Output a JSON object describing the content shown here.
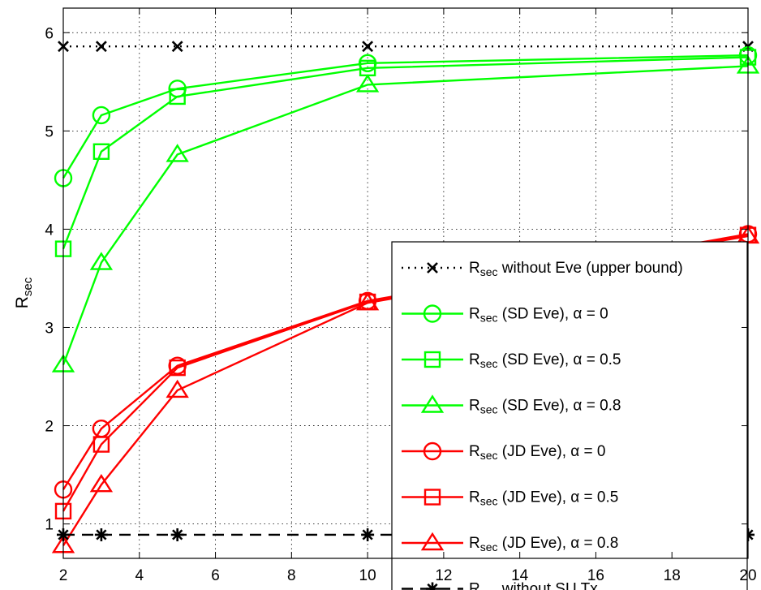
{
  "chart_data": {
    "type": "line",
    "title": "",
    "xlabel": "",
    "ylabel": {
      "main": "R",
      "sub": "sec"
    },
    "xlim": [
      2,
      20
    ],
    "ylim": [
      0.65,
      6.25
    ],
    "xticks": [
      2,
      4,
      6,
      8,
      10,
      12,
      14,
      16,
      18,
      20
    ],
    "yticks": [
      1,
      2,
      3,
      4,
      5,
      6
    ],
    "grid": true,
    "legend_position": "lower-right",
    "x": [
      2,
      3,
      5,
      10,
      20
    ],
    "series": [
      {
        "label_main": "R",
        "label_sub": "sec",
        "label_rest": " without Eve (upper bound)",
        "color": "#000000",
        "line": "dotted",
        "marker": "x",
        "values": [
          5.86,
          5.86,
          5.86,
          5.86,
          5.86
        ]
      },
      {
        "label_main": "R",
        "label_sub": "sec",
        "label_rest": " (SD Eve), α = 0",
        "color": "#00ff00",
        "line": "solid",
        "marker": "circle",
        "values": [
          4.52,
          5.16,
          5.43,
          5.69,
          5.77
        ]
      },
      {
        "label_main": "R",
        "label_sub": "sec",
        "label_rest": " (SD Eve), α = 0.5",
        "color": "#00ff00",
        "line": "solid",
        "marker": "square",
        "values": [
          3.8,
          4.79,
          5.35,
          5.64,
          5.75
        ]
      },
      {
        "label_main": "R",
        "label_sub": "sec",
        "label_rest": " (SD Eve), α = 0.8",
        "color": "#00ff00",
        "line": "solid",
        "marker": "triangle",
        "values": [
          2.62,
          3.66,
          4.76,
          5.47,
          5.66
        ]
      },
      {
        "label_main": "R",
        "label_sub": "sec",
        "label_rest": " (JD Eve), α = 0",
        "color": "#ff0000",
        "line": "solid",
        "marker": "circle",
        "values": [
          1.35,
          1.97,
          2.61,
          3.27,
          3.95
        ]
      },
      {
        "label_main": "R",
        "label_sub": "sec",
        "label_rest": " (JD Eve), α = 0.5",
        "color": "#ff0000",
        "line": "solid",
        "marker": "square",
        "values": [
          1.13,
          1.81,
          2.59,
          3.26,
          3.94
        ]
      },
      {
        "label_main": "R",
        "label_sub": "sec",
        "label_rest": " (JD Eve), α = 0.8",
        "color": "#ff0000",
        "line": "solid",
        "marker": "triangle",
        "values": [
          0.78,
          1.4,
          2.36,
          3.25,
          3.93
        ]
      },
      {
        "label_main": "R",
        "label_sub": "sec",
        "label_rest": " without SU Tx",
        "color": "#000000",
        "line": "dashed",
        "marker": "asterisk",
        "values": [
          0.89,
          0.89,
          0.89,
          0.89,
          0.89
        ]
      }
    ]
  }
}
